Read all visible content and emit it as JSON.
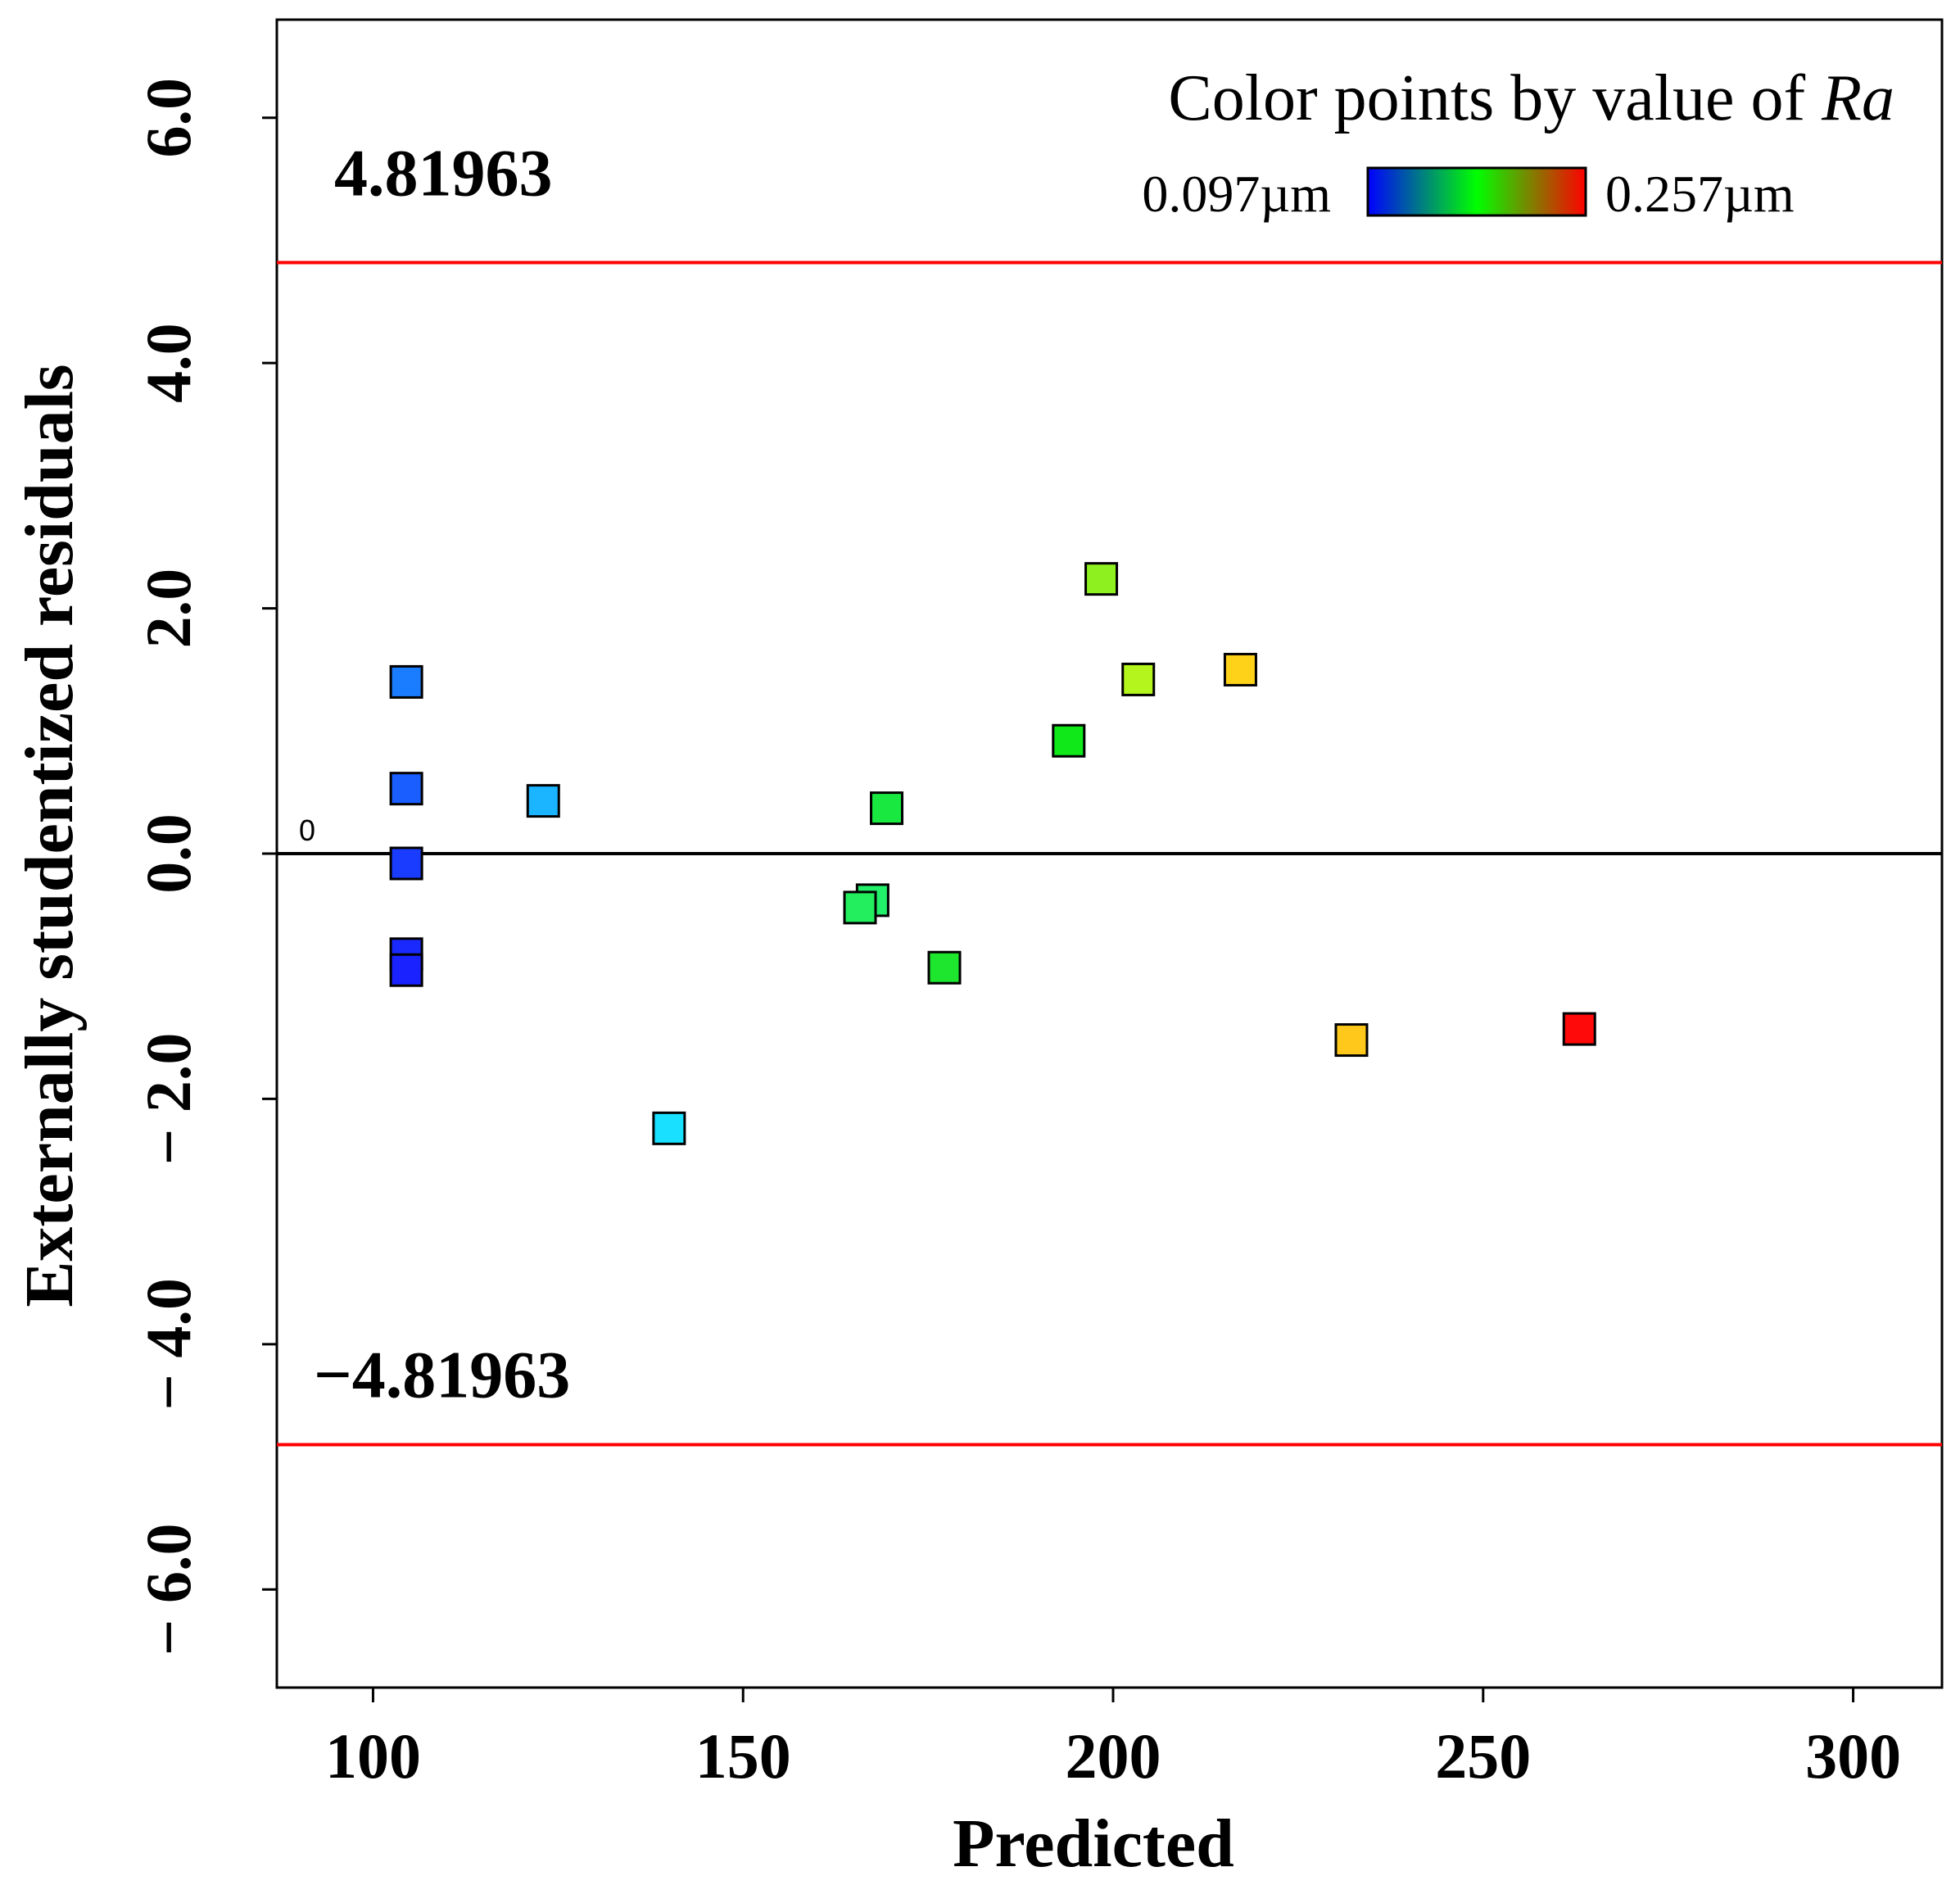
{
  "chart_data": {
    "type": "scatter",
    "title": "",
    "xlabel": "Predicted",
    "ylabel": "Externally studentized residuals",
    "xlim": [
      87,
      312
    ],
    "ylim": [
      -6.8,
      6.8
    ],
    "xticks": [
      100,
      150,
      200,
      250,
      300
    ],
    "yticks": [
      -6.0,
      -4.0,
      -2.0,
      0.0,
      2.0,
      4.0,
      6.0
    ],
    "xtick_labels": [
      "100",
      "150",
      "200",
      "250",
      "300"
    ],
    "ytick_labels": [
      "− 6.0",
      "− 4.0",
      "− 2.0",
      "0.0",
      "2.0",
      "4.0",
      "6.0"
    ],
    "zero_line": 0,
    "zero_label": "0",
    "limit_upper": 4.81963,
    "limit_lower": -4.81963,
    "limit_upper_label": "4.81963",
    "limit_lower_label": "−4.81963",
    "limit_color": "#ff0000",
    "legend": {
      "title_prefix": "Color points by value of ",
      "title_var": "Ra",
      "min_label": "0.097µm",
      "max_label": "0.257µm",
      "gradient": [
        "#0000ff",
        "#00ff00",
        "#ff0000"
      ]
    },
    "points": [
      {
        "x": 104.5,
        "y": 1.4,
        "color": "#1a7cff"
      },
      {
        "x": 104.5,
        "y": 0.53,
        "color": "#1a5eff"
      },
      {
        "x": 104.5,
        "y": -0.08,
        "color": "#1a3cff"
      },
      {
        "x": 104.5,
        "y": -0.82,
        "color": "#1a2aff"
      },
      {
        "x": 104.5,
        "y": -0.95,
        "color": "#1a22ff"
      },
      {
        "x": 123.0,
        "y": 0.43,
        "color": "#1ab4ff"
      },
      {
        "x": 140.0,
        "y": -2.24,
        "color": "#1ae0ff"
      },
      {
        "x": 167.5,
        "y": -0.38,
        "color": "#22f06a"
      },
      {
        "x": 165.8,
        "y": -0.44,
        "color": "#22ee5e"
      },
      {
        "x": 169.4,
        "y": 0.37,
        "color": "#18e840"
      },
      {
        "x": 177.2,
        "y": -0.93,
        "color": "#1ee62e"
      },
      {
        "x": 194.0,
        "y": 0.92,
        "color": "#10e81a"
      },
      {
        "x": 198.4,
        "y": 2.24,
        "color": "#8ef01e"
      },
      {
        "x": 203.4,
        "y": 1.42,
        "color": "#b4f51e"
      },
      {
        "x": 217.2,
        "y": 1.5,
        "color": "#ffd21a"
      },
      {
        "x": 232.2,
        "y": -1.52,
        "color": "#ffc81a"
      },
      {
        "x": 263.0,
        "y": -1.43,
        "color": "#ff0a0a"
      }
    ]
  }
}
